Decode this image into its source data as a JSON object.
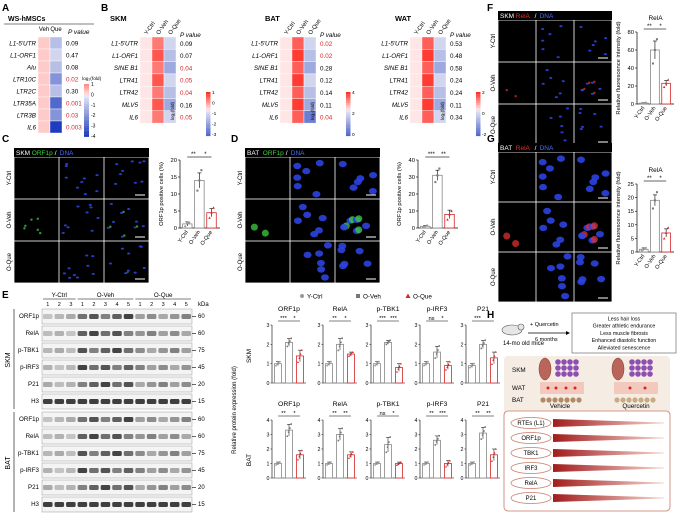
{
  "colors": {
    "red": "#d62728",
    "blue": "#2a3fc4",
    "green": "#2ca02c",
    "gray": "#777777",
    "salmon": "#f39a8f",
    "darkred": "#8b0000"
  },
  "panelA": {
    "letter": "A",
    "title": "WS-hMSCs",
    "col_veh": "Veh",
    "col_que": "Que",
    "pcol": "P value",
    "rows": [
      "L1-5'UTR",
      "L1-ORF1",
      "Alu",
      "LTR10C",
      "LTR2C",
      "LTR35A",
      "LTR3B",
      "IL6"
    ],
    "pvals": [
      "0.09",
      "0.47",
      "0.08",
      "0.02",
      "0.30",
      "0.001",
      "0.03",
      "0.003"
    ],
    "p_red": [
      false,
      false,
      false,
      true,
      false,
      true,
      true,
      true
    ],
    "que_vals": [
      -1,
      -0.5,
      -1,
      -2,
      -1,
      -3,
      -2,
      -4
    ],
    "legend_title": "log₂(fold)",
    "legend_ticks": [
      "1",
      "0",
      "-1",
      "-2",
      "-3",
      "-4"
    ]
  },
  "panelB": {
    "letter": "B",
    "groups": [
      "SKM",
      "BAT",
      "WAT"
    ],
    "cols": [
      "Y-Ctrl",
      "O-Veh",
      "O-Que"
    ],
    "pcol": "P value",
    "rows": [
      "L1-5'UTR",
      "L1-ORF1",
      "SINE B1",
      "LTR41",
      "LTR42",
      "MLV5",
      "IL6"
    ],
    "pvals": [
      [
        "0.09",
        "0.07",
        "0.04",
        "0.05",
        "0.04",
        "0.16",
        "0.05"
      ],
      [
        "0.02",
        "0.02",
        "0.28",
        "0.12",
        "0.14",
        "0.11",
        "0.04"
      ],
      [
        "0.53",
        "0.48",
        "0.58",
        "0.24",
        "0.24",
        "0.11",
        "0.34"
      ]
    ],
    "p_red": [
      [
        false,
        false,
        true,
        true,
        true,
        false,
        true
      ],
      [
        true,
        true,
        false,
        false,
        false,
        false,
        true
      ],
      [
        false,
        false,
        false,
        false,
        false,
        false,
        false
      ]
    ],
    "legend_title": "log₂(fold)",
    "legend_ticks": [
      [
        "1",
        "0",
        "-1",
        "-2",
        "-3"
      ],
      [
        "4",
        "2",
        "0"
      ],
      [
        "2",
        "0",
        "-2"
      ]
    ]
  },
  "panelC": {
    "letter": "C",
    "tissue": "SKM",
    "marker": "ORF1p",
    "dna": "DNA",
    "sep": "/",
    "rows": [
      "Y-Ctrl",
      "O-Veh",
      "O-Que"
    ],
    "ylabel": "ORF1p positive cells (%)",
    "yticks": [
      "0",
      "5",
      "10",
      "15",
      "20"
    ],
    "sig": [
      "**",
      "*"
    ],
    "xcats": [
      "Y-Ctrl",
      "O-Veh",
      "O-Que"
    ]
  },
  "panelD": {
    "letter": "D",
    "tissue": "BAT",
    "marker": "ORF1p",
    "dna": "DNA",
    "sep": "/",
    "rows": [
      "Y-Ctrl",
      "O-Veh",
      "O-Que"
    ],
    "ylabel": "ORF1p positive cells (%)",
    "yticks": [
      "0",
      "10",
      "20",
      "30",
      "40"
    ],
    "sig": [
      "***",
      "**"
    ],
    "xcats": [
      "Y-Ctrl",
      "O-Veh",
      "O-Que"
    ]
  },
  "panelE": {
    "letter": "E",
    "groups": [
      "Y-Ctrl",
      "O-Veh",
      "O-Que"
    ],
    "lanes": [
      "1",
      "2",
      "3",
      "1",
      "2",
      "3",
      "4",
      "5",
      "1",
      "2",
      "3",
      "4",
      "5"
    ],
    "kda": "kDa",
    "skm_label": "SKM",
    "bat_label": "BAT",
    "skm_rows": [
      "ORF1p",
      "RelA",
      "p-TBK1",
      "p-IRF3",
      "P21",
      "H3"
    ],
    "skm_kda": [
      "60",
      "60",
      "75",
      "45",
      "20",
      "15"
    ],
    "bat_rows": [
      "ORF1p",
      "RelA",
      "p-TBK1",
      "p-IRF3",
      "P21",
      "H3"
    ],
    "bat_kda": [
      "60",
      "60",
      "75",
      "45",
      "20",
      "15"
    ],
    "legend": [
      "Y-Ctrl",
      "O-Veh",
      "O-Que"
    ],
    "ylabel": "Relative protein expression (fold)",
    "bar_titles": [
      "ORF1p",
      "RelA",
      "p-TBK1",
      "p-IRF3",
      "P21"
    ],
    "skm_sig": [
      [
        "***",
        "*"
      ],
      [
        "**",
        "*"
      ],
      [
        "***",
        "***"
      ],
      [
        "ns",
        "*"
      ],
      [
        "***",
        "*"
      ]
    ],
    "bat_sig": [
      [
        "**",
        "*"
      ],
      [
        "**",
        "**"
      ],
      [
        "ns",
        "*"
      ],
      [
        "**",
        "***"
      ],
      [
        "**",
        "**"
      ]
    ],
    "yticks_skm": [
      "0",
      "1",
      "2",
      "3"
    ],
    "yticks_bat": [
      "0",
      "1",
      "2",
      "3",
      "4"
    ]
  },
  "panelF": {
    "letter": "F",
    "tissue": "SKM",
    "marker": "RelA",
    "dna": "DNA",
    "sep": "/",
    "rows": [
      "Y-Ctrl",
      "O-Veh",
      "O-Que"
    ],
    "title": "RelA",
    "ylabel": "Relative fluorescence intensity (fold)",
    "yticks": [
      "0",
      "20",
      "40",
      "60",
      "80"
    ],
    "sig": [
      "**",
      "*"
    ],
    "xcats": [
      "Y-Ctrl",
      "O-Veh",
      "O-Que"
    ]
  },
  "panelG": {
    "letter": "G",
    "tissue": "BAT",
    "marker": "RelA",
    "dna": "DNA",
    "sep": "/",
    "rows": [
      "Y-Ctrl",
      "O-Veh",
      "O-Que"
    ],
    "title": "RelA",
    "ylabel": "Relative fluorescence intensity (fold)",
    "yticks": [
      "0",
      "5",
      "10",
      "15",
      "20",
      "25"
    ],
    "sig": [
      "**",
      "*"
    ],
    "xcats": [
      "Y-Ctrl",
      "O-Veh",
      "O-Que"
    ]
  },
  "panelH": {
    "letter": "H",
    "mice": "14-mo old mice",
    "treat": "+ Quercetin",
    "duration": "6 months",
    "effects": [
      "Less hair loss",
      "Greater athletic endurance",
      "Less muscle fibrosis",
      "Enhanced diastolic function",
      "Alleviated senescence"
    ],
    "cols": [
      "Vehicle",
      "Quercetin"
    ],
    "tissues": [
      "SKM",
      "WAT",
      "BAT"
    ],
    "markers": [
      "RTEs (L1)",
      "ORF1p",
      "TBK1",
      "IRF3",
      "RelA",
      "P21"
    ]
  },
  "chart_data": [
    {
      "type": "bar",
      "panel": "C",
      "categories": [
        "Y-Ctrl",
        "O-Veh",
        "O-Que"
      ],
      "values": [
        1.2,
        14,
        4.5
      ],
      "errors": [
        0.6,
        2.2,
        1.2
      ],
      "points": [
        [
          0.5,
          1.5,
          1.6
        ],
        [
          11,
          14,
          17
        ],
        [
          3,
          4.5,
          6
        ]
      ],
      "ylim": [
        0,
        20
      ],
      "ylabel": "ORF1p positive cells (%)"
    },
    {
      "type": "bar",
      "panel": "D",
      "categories": [
        "Y-Ctrl",
        "O-Veh",
        "O-Que"
      ],
      "values": [
        1,
        31,
        8
      ],
      "errors": [
        0.5,
        3,
        2.5
      ],
      "points": [
        [
          0.5,
          1,
          1.5
        ],
        [
          27,
          31,
          35
        ],
        [
          5,
          8,
          10
        ]
      ],
      "ylim": [
        0,
        40
      ],
      "ylabel": "ORF1p positive cells (%)"
    },
    {
      "type": "bar",
      "panel": "F",
      "categories": [
        "Y-Ctrl",
        "O-Veh",
        "O-Que"
      ],
      "values": [
        1,
        60,
        23
      ],
      "errors": [
        0.5,
        10,
        3
      ],
      "points": [
        [
          0.5,
          1,
          1.5
        ],
        [
          45,
          60,
          72
        ],
        [
          19,
          23,
          27
        ]
      ],
      "ylim": [
        0,
        80
      ],
      "ylabel": "Relative fluorescence intensity (fold)"
    },
    {
      "type": "bar",
      "panel": "G",
      "categories": [
        "Y-Ctrl",
        "O-Veh",
        "O-Que"
      ],
      "values": [
        1,
        19,
        7
      ],
      "errors": [
        0.5,
        2,
        1.5
      ],
      "points": [
        [
          0.5,
          1,
          1.5
        ],
        [
          16,
          19,
          22
        ],
        [
          5,
          7,
          9
        ]
      ],
      "ylim": [
        0,
        25
      ],
      "ylabel": "Relative fluorescence intensity (fold)"
    },
    {
      "type": "bar",
      "panel": "E-SKM",
      "categories": [
        "Y-Ctrl",
        "O-Veh",
        "O-Que"
      ],
      "series": [
        {
          "name": "ORF1p",
          "values": [
            1,
            2.1,
            1.4
          ],
          "errors": [
            0.1,
            0.2,
            0.3
          ]
        },
        {
          "name": "RelA",
          "values": [
            1,
            2.0,
            1.5
          ],
          "errors": [
            0.1,
            0.3,
            0.1
          ]
        },
        {
          "name": "p-TBK1",
          "values": [
            1,
            2.1,
            0.8
          ],
          "errors": [
            0.1,
            0.1,
            0.2
          ]
        },
        {
          "name": "p-IRF3",
          "values": [
            1,
            1.6,
            0.9
          ],
          "errors": [
            0.1,
            0.3,
            0.2
          ]
        },
        {
          "name": "P21",
          "values": [
            0.9,
            2.0,
            1.3
          ],
          "errors": [
            0.1,
            0.2,
            0.3
          ]
        }
      ],
      "ylim": [
        0,
        3
      ]
    },
    {
      "type": "bar",
      "panel": "E-BAT",
      "categories": [
        "Y-Ctrl",
        "O-Veh",
        "O-Que"
      ],
      "series": [
        {
          "name": "ORF1p",
          "values": [
            1,
            3.3,
            1.6
          ],
          "errors": [
            0.1,
            0.4,
            0.3
          ]
        },
        {
          "name": "RelA",
          "values": [
            1,
            3.0,
            1.6
          ],
          "errors": [
            0.1,
            0.4,
            0.2
          ]
        },
        {
          "name": "p-TBK1",
          "values": [
            1,
            2.3,
            1.0
          ],
          "errors": [
            0.1,
            0.5,
            0.1
          ]
        },
        {
          "name": "p-IRF3",
          "values": [
            1,
            2.6,
            1.0
          ],
          "errors": [
            0.1,
            0.3,
            0.2
          ]
        },
        {
          "name": "P21",
          "values": [
            1,
            3.1,
            1.6
          ],
          "errors": [
            0.1,
            0.4,
            0.4
          ]
        }
      ],
      "ylim": [
        0,
        4
      ]
    }
  ]
}
